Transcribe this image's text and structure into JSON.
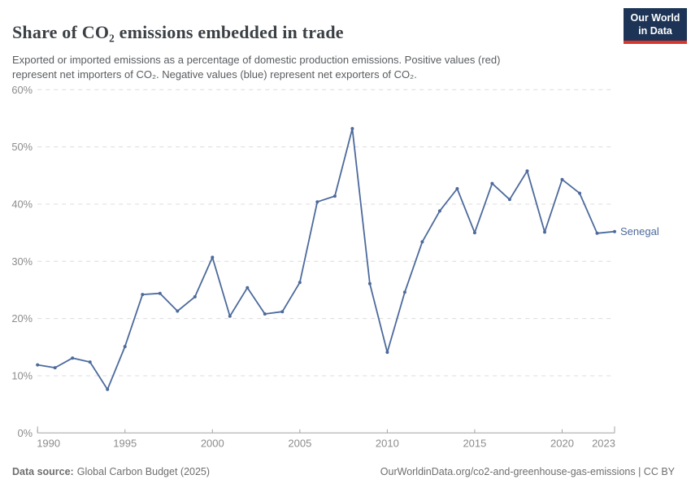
{
  "header": {
    "title": "Share of CO₂ emissions embedded in trade",
    "logo": {
      "line1": "Our World",
      "line2": "in Data"
    }
  },
  "subtitle": "Exported or imported emissions as a percentage of domestic production emissions. Positive values (red)\nrepresent net importers of CO₂. Negative values (blue) represent net exporters of CO₂.",
  "chart_data": {
    "type": "line",
    "title": "Share of CO₂ emissions embedded in trade",
    "entity": "Senegal",
    "unit": "%",
    "x": [
      1990,
      1991,
      1992,
      1993,
      1994,
      1995,
      1996,
      1997,
      1998,
      1999,
      2000,
      2001,
      2002,
      2003,
      2004,
      2005,
      2006,
      2007,
      2008,
      2009,
      2010,
      2011,
      2012,
      2013,
      2014,
      2015,
      2016,
      2017,
      2018,
      2019,
      2020,
      2021,
      2022,
      2023
    ],
    "series": [
      {
        "name": "Senegal",
        "color": "#4c6a9c",
        "values": [
          11.9,
          11.4,
          13.1,
          12.4,
          7.6,
          15.1,
          24.2,
          24.4,
          21.3,
          23.8,
          30.7,
          20.4,
          25.4,
          20.8,
          21.2,
          26.3,
          40.4,
          41.4,
          53.2,
          26.1,
          14.1,
          24.6,
          33.4,
          38.8,
          42.7,
          35.0,
          43.6,
          40.8,
          45.8,
          35.1,
          44.3,
          41.9,
          34.9,
          35.2
        ]
      }
    ],
    "ylim": [
      0,
      60
    ],
    "yticks": [
      0,
      10,
      20,
      30,
      40,
      50,
      60
    ],
    "y_tick_suffix": "%",
    "xticks": [
      1990,
      1995,
      2000,
      2005,
      2010,
      2015,
      2020,
      2023
    ],
    "grid": "dashed-horizontal",
    "legend_position": "end-of-line-label"
  },
  "footer": {
    "source_label": "Data source:",
    "source_value": "Global Carbon Budget (2025)",
    "rights": "OurWorldinData.org/co2-and-greenhouse-gas-emissions | CC BY"
  },
  "colors": {
    "line": "#4c6a9c",
    "grid": "#dcdcdc",
    "axis": "#a3a3a3",
    "tick_label": "#8c8c8c",
    "logo_bg": "#1d3456",
    "logo_accent": "#dc352b"
  }
}
